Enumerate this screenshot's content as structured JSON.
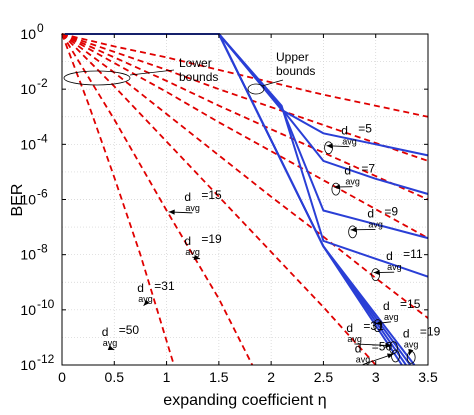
{
  "chart_data": {
    "type": "line",
    "title": "",
    "xlabel": "expanding coefficient η",
    "ylabel": "BER",
    "xlim": [
      0,
      3.5
    ],
    "ylim_log10": [
      -12,
      0
    ],
    "y_scale": "log",
    "grid": true,
    "x_ticks": [
      "0",
      "0.5",
      "1",
      "1.5",
      "2",
      "2.5",
      "3",
      "3.5"
    ],
    "y_tick_bases": [
      "10",
      "10",
      "10",
      "10",
      "10",
      "10",
      "10"
    ],
    "y_tick_exps": [
      "0",
      "-2",
      "-4",
      "-6",
      "-8",
      "-10",
      "-12"
    ],
    "y_tick_values": [
      0,
      -2,
      -4,
      -6,
      -8,
      -10,
      -12
    ],
    "group_labels": [
      {
        "line1": "Lower",
        "line2": "bounds"
      },
      {
        "line1": "Upper",
        "line2": "bounds"
      }
    ],
    "lower_bounds": [
      {
        "davg": "5",
        "color": "#e00000",
        "style": "dashed",
        "points": [
          [
            0,
            0
          ],
          [
            0.5,
            -0.45
          ],
          [
            1,
            -0.85
          ],
          [
            1.5,
            -1.3
          ],
          [
            2,
            -1.75
          ],
          [
            2.5,
            -2.2
          ],
          [
            3,
            -2.6
          ],
          [
            3.5,
            -3.0
          ]
        ]
      },
      {
        "davg": "7",
        "color": "#e00000",
        "style": "dashed",
        "points": [
          [
            0,
            0
          ],
          [
            0.5,
            -0.65
          ],
          [
            1,
            -1.3
          ],
          [
            1.5,
            -2.0
          ],
          [
            2,
            -2.65
          ],
          [
            2.5,
            -3.3
          ],
          [
            3,
            -3.95
          ],
          [
            3.5,
            -4.6
          ]
        ]
      },
      {
        "davg": "9",
        "color": "#e00000",
        "style": "dashed",
        "points": [
          [
            0,
            0
          ],
          [
            0.5,
            -0.85
          ],
          [
            1,
            -1.7
          ],
          [
            1.5,
            -2.6
          ],
          [
            2,
            -3.45
          ],
          [
            2.5,
            -4.3
          ],
          [
            3,
            -5.15
          ],
          [
            3.5,
            -6.0
          ]
        ]
      },
      {
        "davg": "11",
        "color": "#e00000",
        "style": "dashed",
        "points": [
          [
            0,
            0
          ],
          [
            0.5,
            -1.05
          ],
          [
            1,
            -2.1
          ],
          [
            1.5,
            -3.2
          ],
          [
            2,
            -4.25
          ],
          [
            2.5,
            -5.3
          ],
          [
            3,
            -6.35
          ],
          [
            3.5,
            -7.4
          ]
        ]
      },
      {
        "davg": "15",
        "color": "#e00000",
        "style": "dashed",
        "points": [
          [
            0,
            0
          ],
          [
            0.5,
            -1.4
          ],
          [
            1,
            -2.9
          ],
          [
            1.5,
            -4.4
          ],
          [
            2,
            -5.9
          ],
          [
            2.5,
            -7.35
          ],
          [
            3,
            -8.85
          ],
          [
            3.5,
            -10.3
          ]
        ]
      },
      {
        "davg": "19",
        "color": "#e00000",
        "style": "dashed",
        "points": [
          [
            0,
            0
          ],
          [
            0.5,
            -1.9
          ],
          [
            1,
            -3.9
          ],
          [
            1.5,
            -5.9
          ],
          [
            2,
            -7.9
          ],
          [
            2.5,
            -9.9
          ],
          [
            3,
            -12
          ]
        ]
      },
      {
        "davg": "31",
        "color": "#e00000",
        "style": "dashed",
        "points": [
          [
            0,
            0
          ],
          [
            0.5,
            -3.1
          ],
          [
            1,
            -6.4
          ],
          [
            1.5,
            -9.6
          ],
          [
            1.82,
            -12
          ]
        ]
      },
      {
        "davg": "50",
        "color": "#e00000",
        "style": "dashed",
        "points": [
          [
            0,
            0
          ],
          [
            0.25,
            -2.5
          ],
          [
            0.5,
            -5.2
          ],
          [
            0.75,
            -8.0
          ],
          [
            1.07,
            -12
          ]
        ]
      }
    ],
    "upper_bounds": [
      {
        "davg": "5",
        "color": "#2a3fd6",
        "points": [
          [
            0.03,
            0
          ],
          [
            1.5,
            0
          ],
          [
            2.1,
            -2.75
          ],
          [
            2.5,
            -3.6
          ],
          [
            3,
            -4.0
          ],
          [
            3.5,
            -4.4
          ]
        ]
      },
      {
        "davg": "7",
        "color": "#2a3fd6",
        "points": [
          [
            0.03,
            0
          ],
          [
            1.5,
            0
          ],
          [
            2.1,
            -2.7
          ],
          [
            2.5,
            -4.6
          ],
          [
            3,
            -5.25
          ],
          [
            3.5,
            -5.8
          ]
        ]
      },
      {
        "davg": "9",
        "color": "#2a3fd6",
        "points": [
          [
            0.03,
            0
          ],
          [
            1.5,
            0
          ],
          [
            2.1,
            -2.65
          ],
          [
            2.5,
            -6.4
          ],
          [
            3,
            -6.9
          ],
          [
            3.5,
            -7.4
          ]
        ]
      },
      {
        "davg": "11",
        "color": "#2a3fd6",
        "points": [
          [
            0.03,
            0
          ],
          [
            1.5,
            0
          ],
          [
            2.1,
            -2.6
          ],
          [
            2.5,
            -7.5
          ],
          [
            3,
            -8.15
          ],
          [
            3.5,
            -8.8
          ]
        ]
      },
      {
        "davg": "15",
        "color": "#2a3fd6",
        "points": [
          [
            0.03,
            0
          ],
          [
            1.5,
            0
          ],
          [
            2.5,
            -7.7
          ],
          [
            3.25,
            -12
          ]
        ]
      },
      {
        "davg": "19",
        "color": "#2a3fd6",
        "points": [
          [
            0.03,
            0
          ],
          [
            1.5,
            0
          ],
          [
            2.5,
            -7.7
          ],
          [
            3.29,
            -12
          ]
        ]
      },
      {
        "davg": "31",
        "color": "#2a3fd6",
        "points": [
          [
            0.03,
            0
          ],
          [
            1.5,
            0
          ],
          [
            2.5,
            -7.7
          ],
          [
            3.33,
            -12
          ]
        ]
      },
      {
        "davg": "50",
        "color": "#2a3fd6",
        "points": [
          [
            0.03,
            0
          ],
          [
            1.5,
            0
          ],
          [
            2.5,
            -7.7
          ],
          [
            3.37,
            -12
          ]
        ]
      }
    ],
    "annotations": [
      {
        "id": "ub-5",
        "base": "d",
        "sub": "avg",
        "value": "=5",
        "text_at": [
          2.67,
          -3.65
        ],
        "arrow_to": [
          2.53,
          -4.05
        ]
      },
      {
        "id": "ub-7",
        "base": "d",
        "sub": "avg",
        "value": "=7",
        "text_at": [
          2.7,
          -5.1
        ],
        "arrow_to": [
          2.6,
          -5.55
        ]
      },
      {
        "id": "ub-9",
        "base": "d",
        "sub": "avg",
        "value": "=9",
        "text_at": [
          2.92,
          -6.65
        ],
        "arrow_to": [
          2.76,
          -7.1
        ]
      },
      {
        "id": "ub-11",
        "base": "d",
        "sub": "avg",
        "value": "=11",
        "text_at": [
          3.1,
          -8.2
        ],
        "arrow_to": [
          2.98,
          -8.65
        ]
      },
      {
        "id": "ub-15",
        "base": "d",
        "sub": "avg",
        "value": "=15",
        "text_at": [
          3.07,
          -10.0
        ],
        "arrow_to": [
          3.0,
          -10.5
        ]
      },
      {
        "id": "ub-31",
        "base": "d",
        "sub": "avg",
        "value": "=31",
        "text_at": [
          2.72,
          -10.8
        ],
        "arrow_to": [
          3.15,
          -11.3
        ]
      },
      {
        "id": "ub-19",
        "base": "d",
        "sub": "avg",
        "value": "=19",
        "text_at": [
          3.26,
          -11.0
        ],
        "arrow_to": [
          3.32,
          -11.65
        ]
      },
      {
        "id": "ub-50",
        "base": "d",
        "sub": "avg",
        "value": "=50",
        "text_at": [
          2.8,
          -11.55
        ],
        "arrow_to": [
          3.17,
          -11.6
        ]
      },
      {
        "id": "lb-15",
        "base": "d",
        "sub": "avg",
        "value": "=15",
        "text_at": [
          1.17,
          -6.05
        ],
        "arrow_to": [
          1.02,
          -6.45
        ]
      },
      {
        "id": "lb-19",
        "base": "d",
        "sub": "avg",
        "value": "=19",
        "text_at": [
          1.17,
          -7.65
        ],
        "arrow_to": [
          1.32,
          -8.15
        ]
      },
      {
        "id": "lb-31",
        "base": "d",
        "sub": "avg",
        "value": "=31",
        "text_at": [
          0.72,
          -9.35
        ],
        "arrow_to": [
          0.78,
          -9.85
        ]
      },
      {
        "id": "lb-50",
        "base": "d",
        "sub": "avg",
        "value": "=50",
        "text_at": [
          0.38,
          -10.95
        ],
        "arrow_to": [
          0.5,
          -11.45
        ]
      }
    ]
  }
}
